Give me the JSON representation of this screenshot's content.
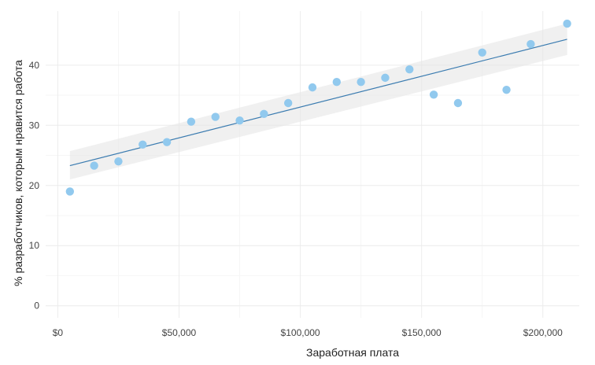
{
  "chart_data": {
    "type": "scatter",
    "title": "",
    "xlabel": "Заработная плата",
    "ylabel": "% разработчиков, которым нравится работа",
    "xlim": [
      -5000,
      215000
    ],
    "ylim": [
      -2,
      49
    ],
    "x_ticks": [
      0,
      50000,
      100000,
      150000,
      200000
    ],
    "x_tick_labels": [
      "$0",
      "$50,000",
      "$100,000",
      "$150,000",
      "$200,000"
    ],
    "y_ticks": [
      0,
      10,
      20,
      30,
      40
    ],
    "y_tick_labels": [
      "0",
      "10",
      "20",
      "30",
      "40"
    ],
    "grid": true,
    "legend": "none",
    "point_color": "#91c9ee",
    "line_color": "#3a7bb0",
    "band_color": "#e6e6e6",
    "points": [
      {
        "x": 5000,
        "y": 19.0
      },
      {
        "x": 15000,
        "y": 23.3
      },
      {
        "x": 25000,
        "y": 24.0
      },
      {
        "x": 35000,
        "y": 26.8
      },
      {
        "x": 45000,
        "y": 27.2
      },
      {
        "x": 55000,
        "y": 30.6
      },
      {
        "x": 65000,
        "y": 31.4
      },
      {
        "x": 75000,
        "y": 30.8
      },
      {
        "x": 85000,
        "y": 31.9
      },
      {
        "x": 95000,
        "y": 33.7
      },
      {
        "x": 105000,
        "y": 36.3
      },
      {
        "x": 115000,
        "y": 37.2
      },
      {
        "x": 125000,
        "y": 37.2
      },
      {
        "x": 135000,
        "y": 37.9
      },
      {
        "x": 145000,
        "y": 39.3
      },
      {
        "x": 155000,
        "y": 35.1
      },
      {
        "x": 165000,
        "y": 33.7
      },
      {
        "x": 175000,
        "y": 42.1
      },
      {
        "x": 185000,
        "y": 35.9
      },
      {
        "x": 195000,
        "y": 43.5
      },
      {
        "x": 210000,
        "y": 46.9
      }
    ],
    "trend": {
      "x": [
        5000,
        210000
      ],
      "y": [
        23.3,
        44.3
      ],
      "ci_low": [
        21.0,
        41.7
      ],
      "ci_high": [
        25.7,
        46.9
      ]
    }
  }
}
